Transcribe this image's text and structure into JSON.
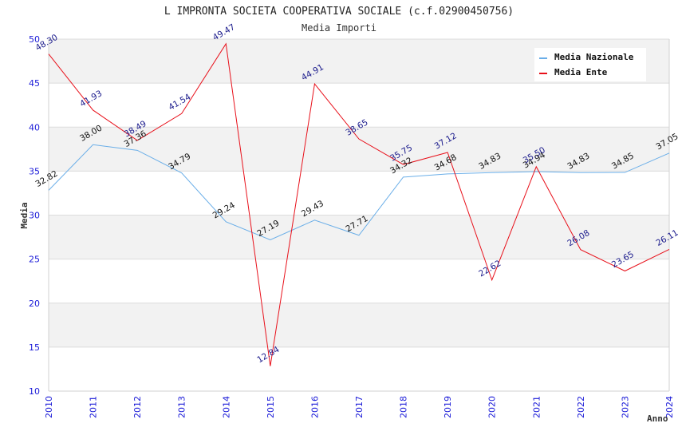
{
  "chart_data": {
    "type": "line",
    "title": "L IMPRONTA SOCIETA COOPERATIVA SOCIALE (c.f.02900450756)",
    "subtitle": "Media Importi",
    "xlabel": "Anno",
    "ylabel": "Media",
    "ylim": [
      10,
      50
    ],
    "yticks": [
      "10",
      "15",
      "20",
      "25",
      "30",
      "35",
      "40",
      "45",
      "50"
    ],
    "x": [
      "2010",
      "2011",
      "2012",
      "2013",
      "2014",
      "2015",
      "2016",
      "2017",
      "2018",
      "2019",
      "2020",
      "2021",
      "2022",
      "2023",
      "2024"
    ],
    "grid": "horizontal bands",
    "legend_position": "top-right",
    "series": [
      {
        "name": "Media Nazionale",
        "color": "#6aaee8",
        "label_color": "#111111",
        "values": [
          32.82,
          38.0,
          37.36,
          34.79,
          29.24,
          27.19,
          29.43,
          27.71,
          34.32,
          34.68,
          34.83,
          34.94,
          34.83,
          34.85,
          37.05
        ],
        "labels": [
          "32.82",
          "38.00",
          "37.36",
          "34.79",
          "29.24",
          "27.19",
          "29.43",
          "27.71",
          "34.32",
          "34.68",
          "34.83",
          "34.94",
          "34.83",
          "34.85",
          "37.05"
        ]
      },
      {
        "name": "Media Ente",
        "color": "#e8101a",
        "label_color": "#1a1a8c",
        "values": [
          48.3,
          41.93,
          38.49,
          41.54,
          49.47,
          12.84,
          44.91,
          38.65,
          35.75,
          37.12,
          22.62,
          35.5,
          26.08,
          23.65,
          26.11
        ],
        "labels": [
          "48.30",
          "41.93",
          "38.49",
          "41.54",
          "49.47",
          "12.84",
          "44.91",
          "38.65",
          "35.75",
          "37.12",
          "22.62",
          "35.50",
          "26.08",
          "23.65",
          "26.11"
        ]
      }
    ]
  }
}
